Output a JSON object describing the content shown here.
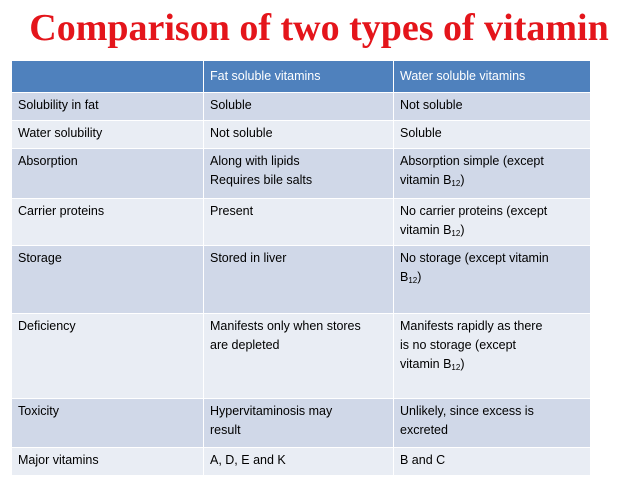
{
  "title": "Comparison of two types of vitamin",
  "table": {
    "headers": [
      "",
      "Fat soluble vitamins",
      "Water soluble vitamins"
    ],
    "rows": [
      {
        "feature": "Solubility in fat",
        "fat": "Soluble",
        "water": "Not soluble"
      },
      {
        "feature": "Water solubility",
        "fat": "Not soluble",
        "water": "Soluble"
      },
      {
        "feature": "Absorption",
        "fat": "Along with lipids\nRequires bile salts",
        "water_pre": "Absorption simple (except\nvitamin B",
        "water_sub": "12",
        "water_post": ")"
      },
      {
        "feature": "Carrier proteins",
        "fat": "Present",
        "water_pre": "No carrier proteins (except\nvitamin B",
        "water_sub": "12",
        "water_post": ")"
      },
      {
        "feature": "Storage",
        "fat": "Stored in liver",
        "water_pre": "No storage (except vitamin\nB",
        "water_sub": "12",
        "water_post": ")"
      },
      {
        "feature": "Deficiency",
        "fat": "Manifests only when stores\nare depleted",
        "water_pre": "Manifests rapidly as there\nis no storage (except\nvitamin B",
        "water_sub": "12",
        "water_post": ")"
      },
      {
        "feature": "Toxicity",
        "fat": "Hypervitaminosis may\nresult",
        "water": "Unlikely, since excess is\nexcreted"
      },
      {
        "feature": "Major vitamins",
        "fat": "A, D, E and K",
        "water": "B and C"
      }
    ]
  },
  "colors": {
    "title": "#e4151b",
    "header_bg": "#4f81bd",
    "row_odd": "#d0d8e8",
    "row_even": "#e9edf4"
  }
}
